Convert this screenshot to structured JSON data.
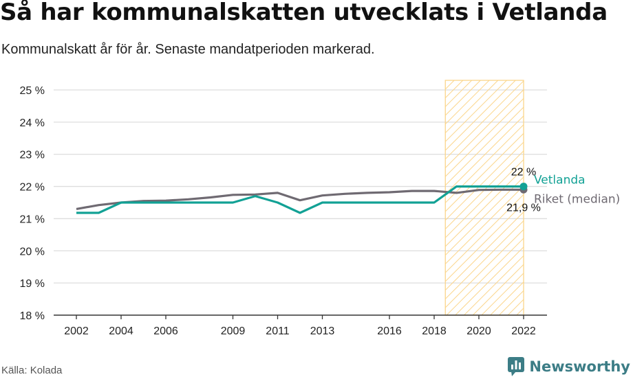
{
  "header": {
    "title": "Så har kommunalskatten utvecklats i Vetlanda",
    "subtitle": "Kommunalskatt år för år. Senaste mandatperioden markerad."
  },
  "footer": {
    "source": "Källa: Kolada",
    "brand": "Newsworthy",
    "brand_icon": "newsworthy-logo-icon"
  },
  "colors": {
    "vetlanda": "#12a195",
    "riket": "#6f6a72",
    "highlight": "#fbd58a",
    "grid": "#dddddd",
    "axis": "#333333",
    "brand": "#3c7d86"
  },
  "chart_data": {
    "type": "line",
    "x_ticks": [
      "2002",
      "2004",
      "2006",
      "2009",
      "2011",
      "2013",
      "2016",
      "2018",
      "2020",
      "2022"
    ],
    "y_ticks": [
      "18 %",
      "19 %",
      "20 %",
      "21 %",
      "22 %",
      "23 %",
      "24 %",
      "25 %"
    ],
    "xlim": [
      2002,
      2022
    ],
    "ylim": [
      18,
      25
    ],
    "grid": true,
    "highlight_period": [
      2018.5,
      2022
    ],
    "series": [
      {
        "name": "Riket (median)",
        "x": [
          2002,
          2003,
          2004,
          2005,
          2006,
          2007,
          2008,
          2009,
          2010,
          2011,
          2012,
          2013,
          2014,
          2015,
          2016,
          2017,
          2018,
          2019,
          2020,
          2021,
          2022
        ],
        "values": [
          21.3,
          21.42,
          21.5,
          21.55,
          21.56,
          21.6,
          21.66,
          21.74,
          21.75,
          21.8,
          21.57,
          21.72,
          21.77,
          21.8,
          21.82,
          21.86,
          21.86,
          21.8,
          21.89,
          21.9,
          21.9
        ],
        "end_label": "21,9 %"
      },
      {
        "name": "Vetlanda",
        "x": [
          2002,
          2003,
          2004,
          2005,
          2006,
          2007,
          2008,
          2009,
          2010,
          2011,
          2012,
          2013,
          2014,
          2015,
          2016,
          2017,
          2018,
          2019,
          2020,
          2021,
          2022
        ],
        "values": [
          21.18,
          21.18,
          21.5,
          21.5,
          21.5,
          21.5,
          21.5,
          21.5,
          21.7,
          21.5,
          21.18,
          21.5,
          21.5,
          21.5,
          21.5,
          21.5,
          21.5,
          22.0,
          22.0,
          22.0,
          22.0
        ],
        "end_label": "22 %"
      }
    ]
  }
}
